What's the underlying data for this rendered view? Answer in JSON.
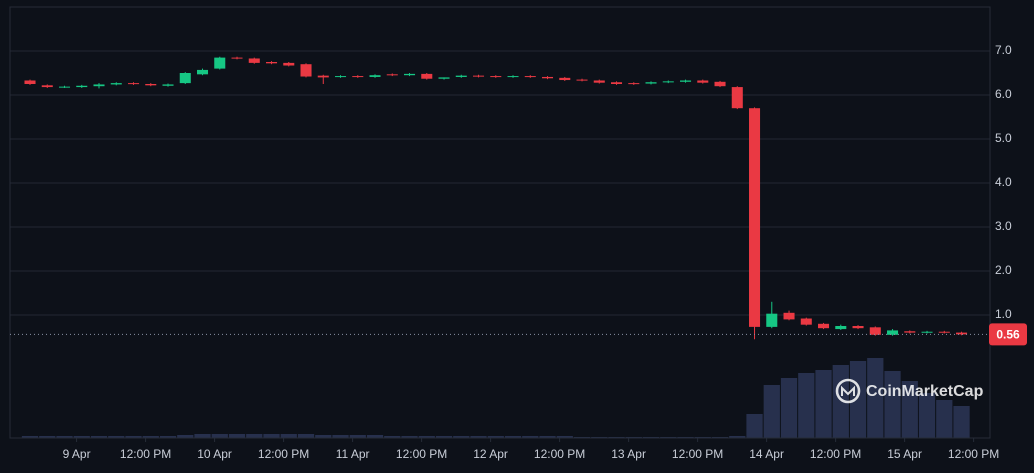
{
  "chart_data": {
    "type": "candlestick",
    "open": [
      6.33,
      6.22,
      6.18,
      6.18,
      6.2,
      6.24,
      6.27,
      6.25,
      6.21,
      6.27,
      6.47,
      6.6,
      6.85,
      6.83,
      6.75,
      6.73,
      6.7,
      6.44,
      6.41,
      6.43,
      6.41,
      6.47,
      6.45,
      6.48,
      6.37,
      6.41,
      6.44,
      6.43,
      6.41,
      6.43,
      6.41,
      6.39,
      6.35,
      6.33,
      6.29,
      6.27,
      6.26,
      6.29,
      6.3,
      6.33,
      6.3,
      6.18,
      5.7,
      0.73,
      1.05,
      0.92,
      0.8,
      0.68,
      0.75,
      0.72,
      0.55,
      0.63,
      0.6,
      0.62,
      0.6
    ],
    "high": [
      6.35,
      6.24,
      6.21,
      6.23,
      6.27,
      6.29,
      6.29,
      6.27,
      6.26,
      6.52,
      6.6,
      6.87,
      6.87,
      6.85,
      6.77,
      6.75,
      6.72,
      6.46,
      6.45,
      6.45,
      6.47,
      6.49,
      6.5,
      6.5,
      6.4,
      6.46,
      6.46,
      6.45,
      6.45,
      6.45,
      6.43,
      6.41,
      6.37,
      6.35,
      6.31,
      6.29,
      6.31,
      6.33,
      6.35,
      6.35,
      6.32,
      6.2,
      5.72,
      1.3,
      1.1,
      0.94,
      0.82,
      0.78,
      0.77,
      0.74,
      0.68,
      0.65,
      0.64,
      0.64,
      0.62
    ],
    "low": [
      6.23,
      6.16,
      6.16,
      6.16,
      6.15,
      6.22,
      6.23,
      6.2,
      6.19,
      6.25,
      6.45,
      6.58,
      6.81,
      6.71,
      6.7,
      6.65,
      6.4,
      6.25,
      6.39,
      6.39,
      6.39,
      6.43,
      6.43,
      6.35,
      6.35,
      6.39,
      6.4,
      6.39,
      6.39,
      6.39,
      6.36,
      6.32,
      6.31,
      6.26,
      6.23,
      6.23,
      6.24,
      6.27,
      6.28,
      6.26,
      6.18,
      5.68,
      0.45,
      0.7,
      0.88,
      0.76,
      0.68,
      0.66,
      0.68,
      0.53,
      0.53,
      0.58,
      0.58,
      0.58,
      0.54
    ],
    "close": [
      6.25,
      6.18,
      6.19,
      6.21,
      6.24,
      6.27,
      6.25,
      6.22,
      6.24,
      6.5,
      6.57,
      6.85,
      6.83,
      6.73,
      6.72,
      6.67,
      6.42,
      6.4,
      6.43,
      6.41,
      6.45,
      6.45,
      6.48,
      6.37,
      6.4,
      6.44,
      6.42,
      6.41,
      6.43,
      6.41,
      6.38,
      6.34,
      6.33,
      6.28,
      6.25,
      6.25,
      6.29,
      6.31,
      6.33,
      6.28,
      6.2,
      5.7,
      0.73,
      1.03,
      0.9,
      0.78,
      0.7,
      0.75,
      0.7,
      0.55,
      0.65,
      0.6,
      0.62,
      0.6,
      0.56
    ],
    "volume": [
      2,
      2,
      2,
      2,
      2,
      2,
      2,
      2,
      2,
      3,
      4,
      4,
      4,
      4,
      4,
      4,
      4,
      3,
      3,
      3,
      3,
      2,
      2,
      2,
      2,
      2,
      2,
      2,
      2,
      2,
      2,
      2,
      1,
      1,
      1,
      1,
      1,
      1,
      1,
      1,
      1,
      2,
      24,
      53,
      60,
      65,
      68,
      73,
      77,
      80,
      67,
      57,
      45,
      38,
      32
    ],
    "up_color": "#16c784",
    "down_color": "#ea3943",
    "volume_color": "#27304d",
    "ylim": [
      0,
      8
    ],
    "yticks": [
      {
        "value": 1,
        "label": "1.0"
      },
      {
        "value": 2,
        "label": "2.0"
      },
      {
        "value": 3,
        "label": "3.0"
      },
      {
        "value": 4,
        "label": "4.0"
      },
      {
        "value": 5,
        "label": "5.0"
      },
      {
        "value": 6,
        "label": "6.0"
      },
      {
        "value": 7,
        "label": "7.0"
      }
    ],
    "xlim": [
      -1.16,
      55.65
    ],
    "xticks": [
      {
        "value": 2.7,
        "label": "9 Apr"
      },
      {
        "value": 6.7,
        "label": "12:00 PM"
      },
      {
        "value": 10.7,
        "label": "10 Apr"
      },
      {
        "value": 14.7,
        "label": "12:00 PM"
      },
      {
        "value": 18.7,
        "label": "11 Apr"
      },
      {
        "value": 22.7,
        "label": "12:00 PM"
      },
      {
        "value": 26.7,
        "label": "12 Apr"
      },
      {
        "value": 30.7,
        "label": "12:00 PM"
      },
      {
        "value": 34.7,
        "label": "13 Apr"
      },
      {
        "value": 38.7,
        "label": "12:00 PM"
      },
      {
        "value": 42.7,
        "label": "14 Apr"
      },
      {
        "value": 46.7,
        "label": "12:00 PM"
      },
      {
        "value": 50.7,
        "label": "15 Apr"
      },
      {
        "value": 54.7,
        "label": "12:00 PM"
      }
    ],
    "vlim": [
      0,
      100
    ],
    "last_price": 0.56,
    "grid": true,
    "watermark": "CoinMarketCap"
  }
}
